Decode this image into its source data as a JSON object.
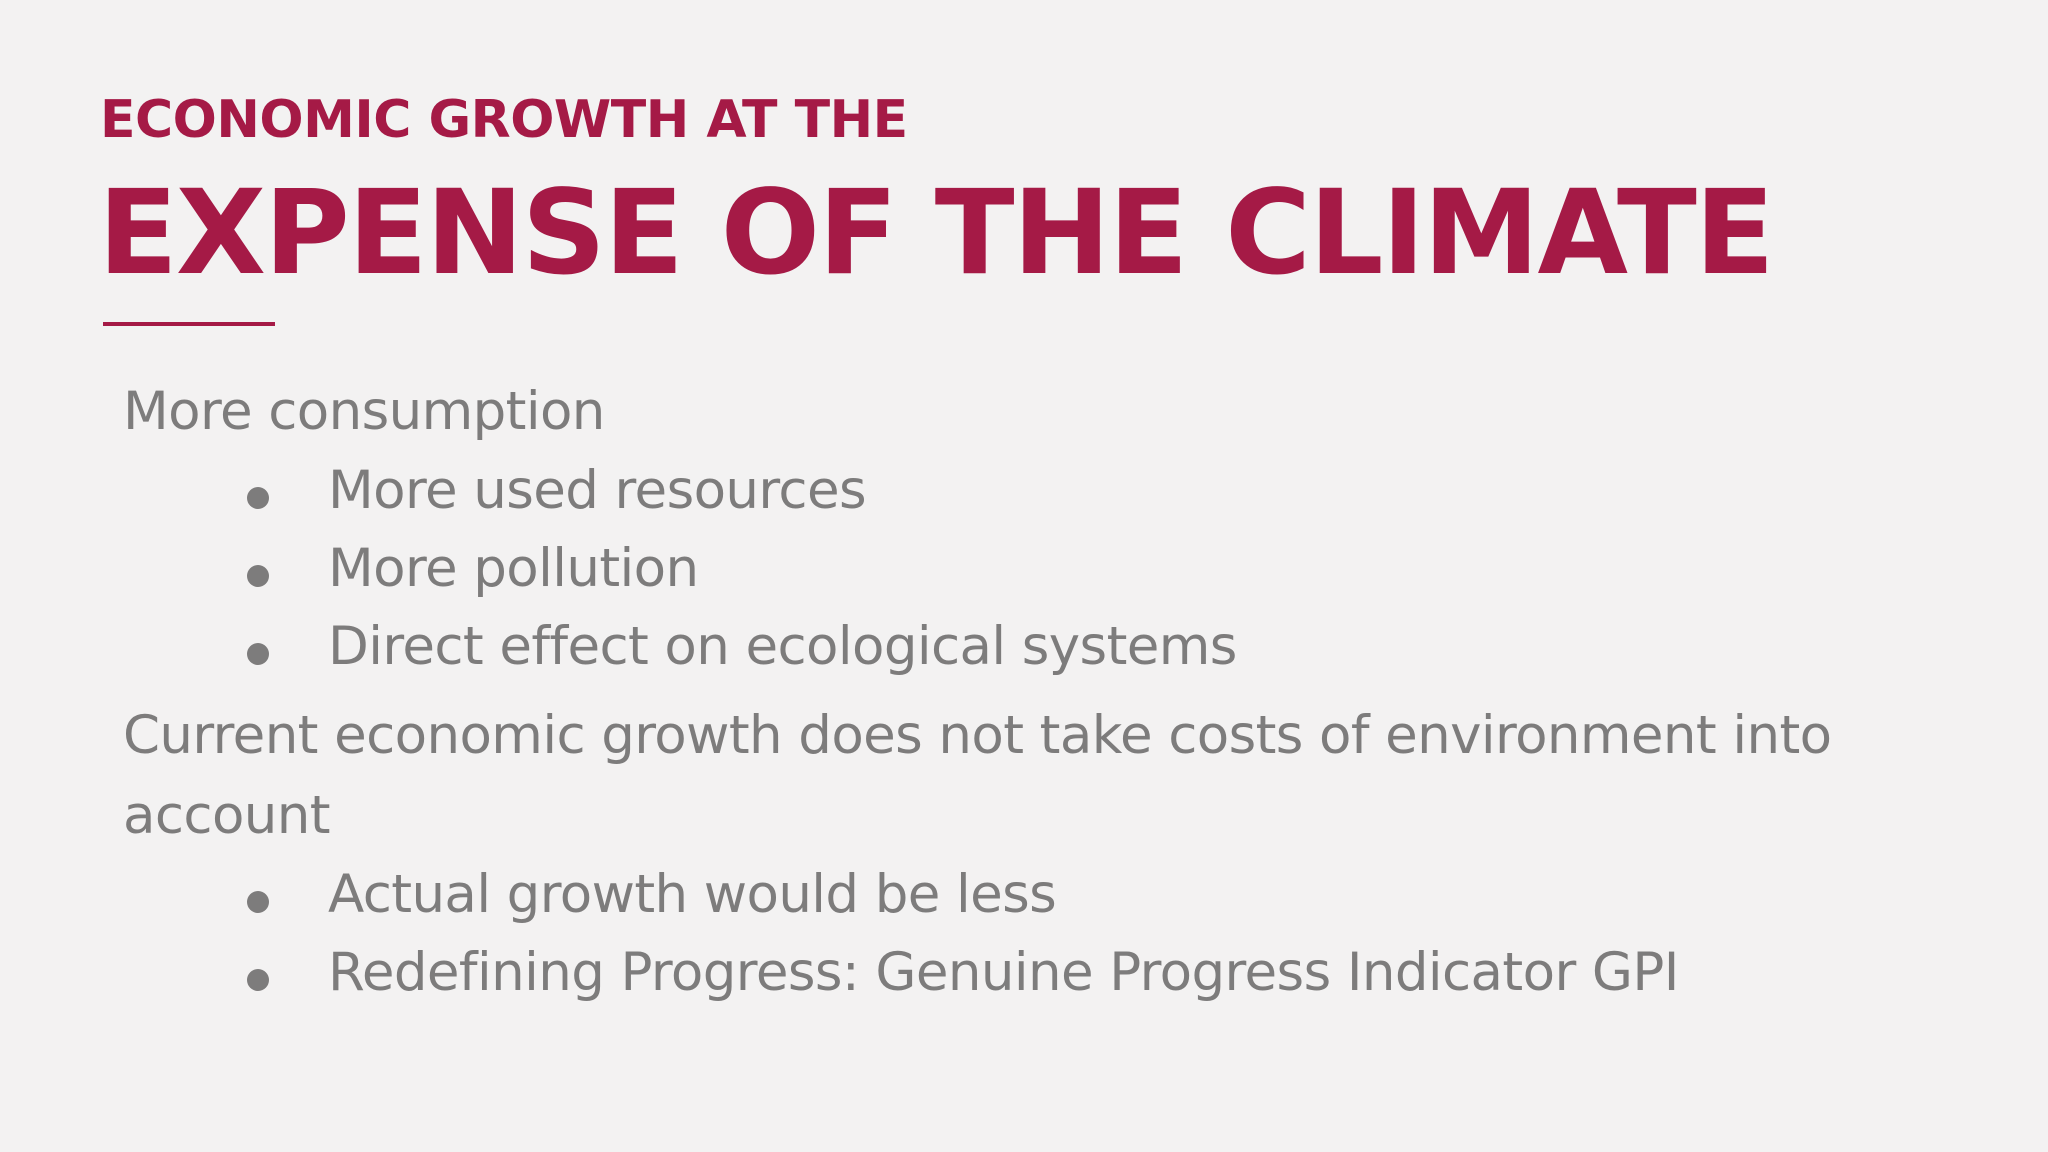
{
  "slide": {
    "kicker": "ECONOMIC GROWTH AT THE",
    "headline": "EXPENSE OF THE CLIMATE",
    "sections": [
      {
        "text": "More consumption",
        "bullets": [
          "More used resources",
          "More pollution",
          "Direct effect on ecological systems"
        ]
      },
      {
        "text": "Current economic growth does not take costs of environment into account",
        "bullets": [
          "Actual growth would be less",
          "Redefining Progress: Genuine Progress Indicator GPI"
        ]
      }
    ]
  },
  "colors": {
    "accent": "#a51a46",
    "body_text": "#7d7c7c",
    "background": "#f3f2f2"
  }
}
